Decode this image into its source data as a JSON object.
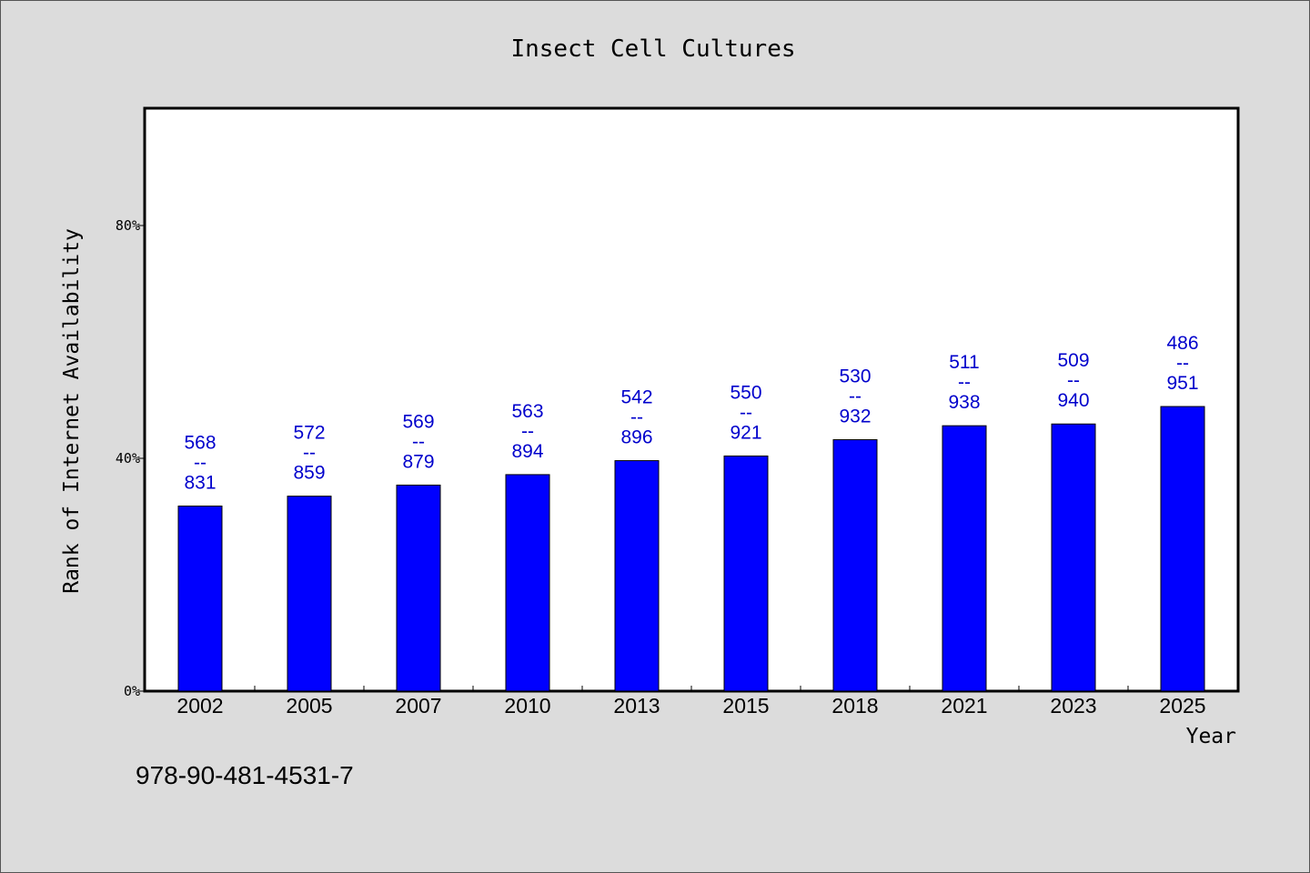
{
  "chart_data": {
    "type": "bar",
    "title": "Insect Cell Cultures",
    "xlabel": "Year",
    "ylabel": "Rank of Internet Availability",
    "categories": [
      "2002",
      "2005",
      "2007",
      "2010",
      "2013",
      "2015",
      "2018",
      "2021",
      "2023",
      "2025"
    ],
    "values": [
      31.8,
      33.5,
      35.4,
      37.2,
      39.6,
      40.4,
      43.2,
      45.6,
      45.9,
      48.9
    ],
    "value_unit": "%",
    "ylim": [
      0,
      100
    ],
    "yticks": [
      {
        "value": 0,
        "label": "0%"
      },
      {
        "value": 40,
        "label": "40%"
      },
      {
        "value": 80,
        "label": "80%"
      }
    ],
    "data_labels": [
      {
        "top": "568",
        "sep": "--",
        "bottom": "831"
      },
      {
        "top": "572",
        "sep": "--",
        "bottom": "859"
      },
      {
        "top": "569",
        "sep": "--",
        "bottom": "879"
      },
      {
        "top": "563",
        "sep": "--",
        "bottom": "894"
      },
      {
        "top": "542",
        "sep": "--",
        "bottom": "896"
      },
      {
        "top": "550",
        "sep": "--",
        "bottom": "921"
      },
      {
        "top": "530",
        "sep": "--",
        "bottom": "932"
      },
      {
        "top": "511",
        "sep": "--",
        "bottom": "938"
      },
      {
        "top": "509",
        "sep": "--",
        "bottom": "940"
      },
      {
        "top": "486",
        "sep": "--",
        "bottom": "951"
      }
    ],
    "grid": false,
    "legend": "none",
    "colors": {
      "bar": "#0000ff",
      "label": "#0000cc",
      "background": "#dcdcdc",
      "plot_area": "#ffffff"
    }
  },
  "footnote": "978-90-481-4531-7"
}
